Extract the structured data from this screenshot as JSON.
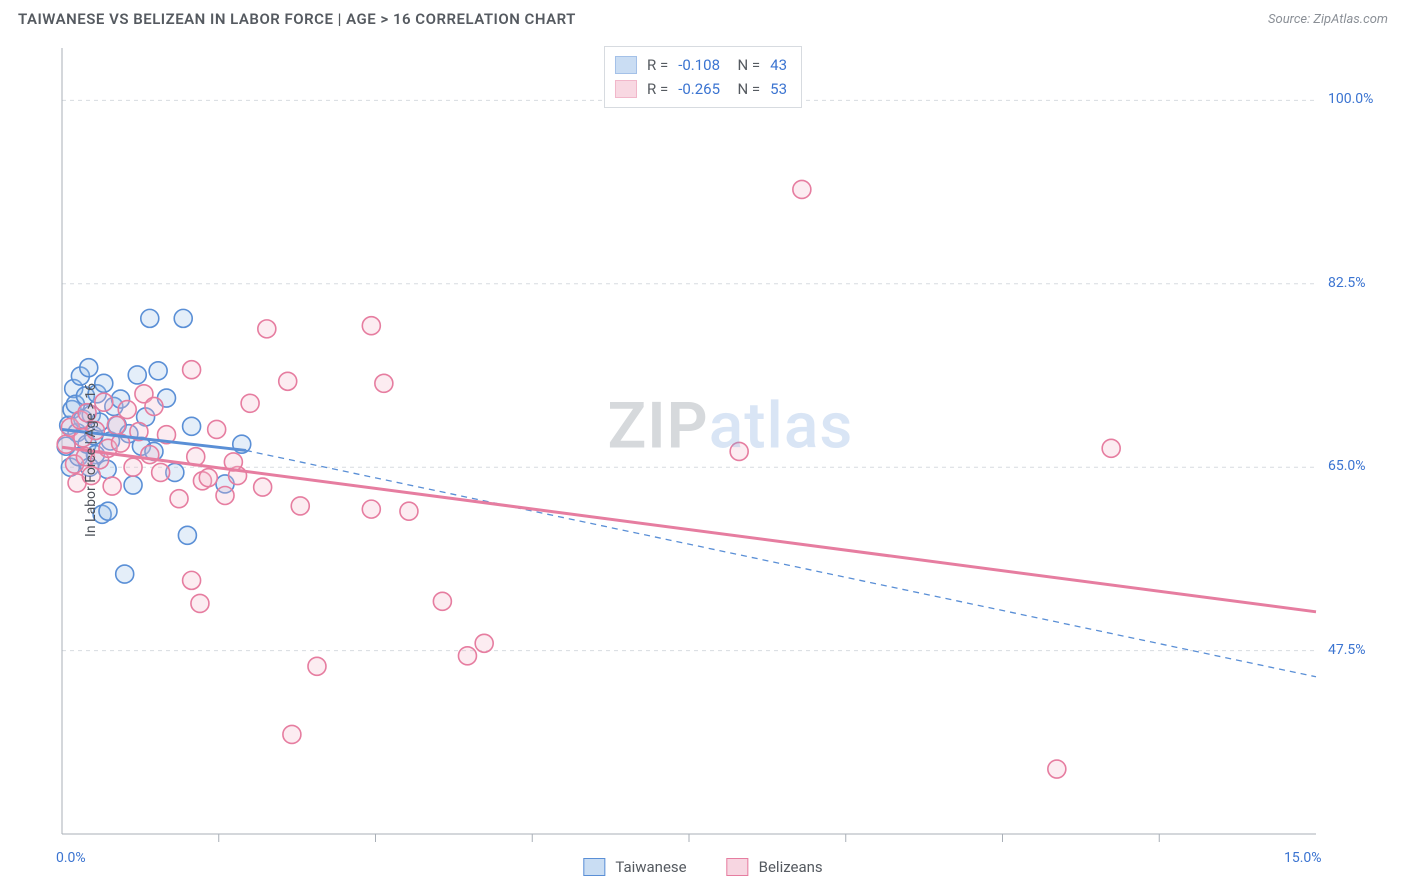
{
  "header": {
    "title": "TAIWANESE VS BELIZEAN IN LABOR FORCE | AGE > 16 CORRELATION CHART",
    "source": "Source: ZipAtlas.com"
  },
  "chart": {
    "type": "scatter",
    "background_color": "#ffffff",
    "grid_color": "#d7dbe0",
    "grid_dash": "4 4",
    "axis_color": "#a9afb7",
    "axis_value_color": "#3b74d1",
    "ylabel": "In Labor Force | Age > 16",
    "ylabel_fontsize": 14,
    "xlim": [
      0,
      15
    ],
    "ylim": [
      30,
      105
    ],
    "y_ticks": [
      47.5,
      65.0,
      82.5,
      100.0
    ],
    "y_tick_labels": [
      "47.5%",
      "65.0%",
      "82.5%",
      "100.0%"
    ],
    "x_ticks_minor": [
      1.875,
      3.75,
      5.625,
      7.5,
      9.375,
      11.25,
      13.125
    ],
    "x_min_label": "0.0%",
    "x_max_label": "15.0%",
    "marker_radius": 9,
    "marker_stroke_width": 1.6,
    "marker_fill_opacity": 0.28,
    "watermark": {
      "part1": "ZIP",
      "part2": "atlas"
    },
    "series": [
      {
        "name": "Taiwanese",
        "color_stroke": "#5a8fd6",
        "color_fill": "#9fc2ea",
        "r": -0.108,
        "n": 43,
        "trend": {
          "x1": 0,
          "y1": 68.6,
          "x2": 2.2,
          "y2": 66.6,
          "width": 3,
          "solid": true
        },
        "extrapolate": {
          "x1": 2.2,
          "y1": 66.6,
          "x2": 15.0,
          "y2": 45.0,
          "width": 1.3,
          "dash": "6 5"
        },
        "points": [
          [
            0.05,
            67
          ],
          [
            0.08,
            69
          ],
          [
            0.1,
            65
          ],
          [
            0.12,
            70.5
          ],
          [
            0.14,
            72.5
          ],
          [
            0.16,
            71
          ],
          [
            0.18,
            68.3
          ],
          [
            0.2,
            66
          ],
          [
            0.22,
            73.7
          ],
          [
            0.25,
            69.6
          ],
          [
            0.28,
            71.8
          ],
          [
            0.3,
            67.2
          ],
          [
            0.32,
            74.5
          ],
          [
            0.35,
            70
          ],
          [
            0.38,
            68
          ],
          [
            0.4,
            66.2
          ],
          [
            0.42,
            72
          ],
          [
            0.45,
            69.3
          ],
          [
            0.48,
            60.5
          ],
          [
            0.5,
            73
          ],
          [
            0.54,
            64.8
          ],
          [
            0.58,
            67.5
          ],
          [
            0.62,
            70.8
          ],
          [
            0.66,
            69
          ],
          [
            0.75,
            54.8
          ],
          [
            0.7,
            71.5
          ],
          [
            0.8,
            68.2
          ],
          [
            0.85,
            63.3
          ],
          [
            0.9,
            73.8
          ],
          [
            0.95,
            67
          ],
          [
            1.0,
            69.8
          ],
          [
            1.05,
            79.2
          ],
          [
            1.1,
            66.5
          ],
          [
            1.15,
            74.2
          ],
          [
            1.25,
            71.6
          ],
          [
            1.35,
            64.5
          ],
          [
            1.45,
            79.2
          ],
          [
            1.55,
            68.9
          ],
          [
            1.5,
            58.5
          ],
          [
            1.95,
            63.4
          ],
          [
            2.15,
            67.2
          ],
          [
            0.55,
            60.8
          ],
          [
            0.33,
            65
          ]
        ]
      },
      {
        "name": "Belizeans",
        "color_stroke": "#e67da0",
        "color_fill": "#f4b9cc",
        "r": -0.265,
        "n": 53,
        "trend": {
          "x1": 0,
          "y1": 66.9,
          "x2": 15.0,
          "y2": 51.2,
          "width": 3,
          "solid": true
        },
        "points": [
          [
            0.05,
            67.2
          ],
          [
            0.1,
            68.8
          ],
          [
            0.15,
            65.3
          ],
          [
            0.18,
            63.5
          ],
          [
            0.22,
            69.5
          ],
          [
            0.25,
            67.8
          ],
          [
            0.28,
            66
          ],
          [
            0.3,
            70.2
          ],
          [
            0.35,
            64.2
          ],
          [
            0.4,
            68.5
          ],
          [
            0.45,
            65.7
          ],
          [
            0.5,
            71.2
          ],
          [
            0.55,
            66.8
          ],
          [
            0.6,
            63.2
          ],
          [
            0.65,
            69
          ],
          [
            0.7,
            67.3
          ],
          [
            0.78,
            70.5
          ],
          [
            0.85,
            65
          ],
          [
            0.92,
            68.4
          ],
          [
            0.98,
            72
          ],
          [
            1.05,
            66.2
          ],
          [
            1.1,
            70.8
          ],
          [
            1.18,
            64.5
          ],
          [
            1.25,
            68.1
          ],
          [
            1.4,
            62
          ],
          [
            1.55,
            74.3
          ],
          [
            1.6,
            66
          ],
          [
            1.68,
            63.7
          ],
          [
            1.75,
            64
          ],
          [
            1.85,
            68.6
          ],
          [
            1.95,
            62.3
          ],
          [
            2.1,
            64.2
          ],
          [
            2.25,
            71.1
          ],
          [
            2.4,
            63.1
          ],
          [
            2.45,
            78.2
          ],
          [
            2.7,
            73.2
          ],
          [
            2.85,
            61.3
          ],
          [
            1.65,
            52
          ],
          [
            1.55,
            54.2
          ],
          [
            2.75,
            39.5
          ],
          [
            3.05,
            46
          ],
          [
            3.7,
            78.5
          ],
          [
            3.85,
            73
          ],
          [
            3.7,
            61
          ],
          [
            4.15,
            60.8
          ],
          [
            4.55,
            52.2
          ],
          [
            4.85,
            47
          ],
          [
            5.05,
            48.2
          ],
          [
            8.85,
            91.5
          ],
          [
            8.1,
            66.5
          ],
          [
            12.55,
            66.8
          ],
          [
            11.9,
            36.2
          ],
          [
            2.05,
            65.5
          ]
        ]
      }
    ],
    "legend_series": [
      {
        "label": "Taiwanese",
        "swatch_fill": "#c9ddf3",
        "swatch_stroke": "#5a8fd6"
      },
      {
        "label": "Belizeans",
        "swatch_fill": "#f7d6e1",
        "swatch_stroke": "#e67da0"
      }
    ]
  }
}
